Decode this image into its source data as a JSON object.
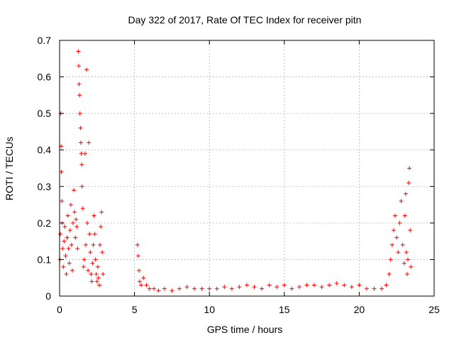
{
  "chart_data": {
    "type": "scatter",
    "title": "Day 322 of 2017, Rate Of TEC Index for receiver pitn",
    "xlabel": "GPS time / hours",
    "ylabel": "ROTI / TECUs",
    "xlim": [
      0,
      25
    ],
    "ylim": [
      0,
      0.7
    ],
    "x_ticks": [
      "0",
      "5",
      "10",
      "15",
      "20",
      "25"
    ],
    "y_ticks": [
      "0",
      "0.1",
      "0.2",
      "0.3",
      "0.4",
      "0.5",
      "0.6",
      "0.7"
    ],
    "grid": true,
    "marker": "+",
    "color": "#ff0000",
    "series": [
      {
        "points": [
          [
            0.02,
            0.1
          ],
          [
            0.05,
            0.17
          ],
          [
            0.08,
            0.5
          ],
          [
            0.1,
            0.41
          ],
          [
            0.12,
            0.34
          ],
          [
            0.15,
            0.26
          ],
          [
            0.18,
            0.2
          ],
          [
            0.2,
            0.13
          ],
          [
            0.25,
            0.08
          ],
          [
            0.3,
            0.15
          ],
          [
            0.35,
            0.19
          ],
          [
            0.4,
            0.11
          ],
          [
            0.45,
            0.06
          ],
          [
            0.5,
            0.16
          ],
          [
            0.55,
            0.22
          ],
          [
            0.6,
            0.13
          ],
          [
            0.65,
            0.09
          ],
          [
            0.7,
            0.18
          ],
          [
            0.75,
            0.25
          ],
          [
            0.8,
            0.14
          ],
          [
            0.85,
            0.07
          ],
          [
            0.9,
            0.2
          ],
          [
            0.95,
            0.29
          ],
          [
            1.0,
            0.23
          ],
          [
            1.05,
            0.16
          ],
          [
            1.1,
            0.21
          ],
          [
            1.15,
            0.19
          ],
          [
            1.2,
            0.13
          ],
          [
            1.25,
            0.67
          ],
          [
            1.28,
            0.63
          ],
          [
            1.3,
            0.58
          ],
          [
            1.33,
            0.55
          ],
          [
            1.36,
            0.5
          ],
          [
            1.4,
            0.46
          ],
          [
            1.42,
            0.42
          ],
          [
            1.45,
            0.39
          ],
          [
            1.48,
            0.36
          ],
          [
            1.5,
            0.3
          ],
          [
            1.55,
            0.24
          ],
          [
            1.6,
            0.08
          ],
          [
            1.65,
            0.1
          ],
          [
            1.7,
            0.39
          ],
          [
            1.75,
            0.14
          ],
          [
            1.8,
            0.62
          ],
          [
            1.85,
            0.2
          ],
          [
            1.9,
            0.07
          ],
          [
            1.95,
            0.42
          ],
          [
            2.0,
            0.17
          ],
          [
            2.05,
            0.12
          ],
          [
            2.1,
            0.06
          ],
          [
            2.15,
            0.04
          ],
          [
            2.2,
            0.09
          ],
          [
            2.25,
            0.14
          ],
          [
            2.3,
            0.22
          ],
          [
            2.35,
            0.17
          ],
          [
            2.4,
            0.1
          ],
          [
            2.45,
            0.06
          ],
          [
            2.5,
            0.04
          ],
          [
            2.55,
            0.08
          ],
          [
            2.6,
            0.05
          ],
          [
            2.65,
            0.03
          ],
          [
            2.7,
            0.14
          ],
          [
            2.75,
            0.19
          ],
          [
            2.8,
            0.23
          ],
          [
            2.85,
            0.12
          ],
          [
            2.9,
            0.06
          ],
          [
            5.2,
            0.14
          ],
          [
            5.25,
            0.11
          ],
          [
            5.3,
            0.07
          ],
          [
            5.35,
            0.04
          ],
          [
            5.45,
            0.03
          ],
          [
            5.6,
            0.05
          ],
          [
            5.8,
            0.03
          ],
          [
            6.0,
            0.02
          ],
          [
            6.3,
            0.02
          ],
          [
            6.6,
            0.015
          ],
          [
            7.0,
            0.02
          ],
          [
            7.5,
            0.015
          ],
          [
            8.0,
            0.02
          ],
          [
            8.5,
            0.025
          ],
          [
            9.0,
            0.02
          ],
          [
            9.5,
            0.02
          ],
          [
            10.0,
            0.02
          ],
          [
            10.5,
            0.02
          ],
          [
            11.0,
            0.025
          ],
          [
            11.5,
            0.02
          ],
          [
            12.0,
            0.025
          ],
          [
            12.5,
            0.03
          ],
          [
            13.0,
            0.025
          ],
          [
            13.5,
            0.02
          ],
          [
            14.0,
            0.03
          ],
          [
            14.5,
            0.025
          ],
          [
            15.0,
            0.03
          ],
          [
            15.5,
            0.02
          ],
          [
            16.0,
            0.025
          ],
          [
            16.5,
            0.03
          ],
          [
            17.0,
            0.03
          ],
          [
            17.5,
            0.025
          ],
          [
            18.0,
            0.03
          ],
          [
            18.5,
            0.035
          ],
          [
            19.0,
            0.03
          ],
          [
            19.5,
            0.025
          ],
          [
            20.0,
            0.03
          ],
          [
            20.5,
            0.02
          ],
          [
            21.0,
            0.02
          ],
          [
            21.5,
            0.02
          ],
          [
            21.8,
            0.03
          ],
          [
            22.0,
            0.06
          ],
          [
            22.1,
            0.1
          ],
          [
            22.2,
            0.14
          ],
          [
            22.3,
            0.18
          ],
          [
            22.4,
            0.22
          ],
          [
            22.5,
            0.16
          ],
          [
            22.6,
            0.12
          ],
          [
            22.7,
            0.2
          ],
          [
            22.8,
            0.26
          ],
          [
            22.9,
            0.14
          ],
          [
            23.0,
            0.09
          ],
          [
            23.05,
            0.22
          ],
          [
            23.1,
            0.28
          ],
          [
            23.15,
            0.12
          ],
          [
            23.2,
            0.06
          ],
          [
            23.25,
            0.1
          ],
          [
            23.3,
            0.31
          ],
          [
            23.35,
            0.35
          ],
          [
            23.4,
            0.18
          ],
          [
            23.45,
            0.08
          ]
        ]
      }
    ]
  }
}
